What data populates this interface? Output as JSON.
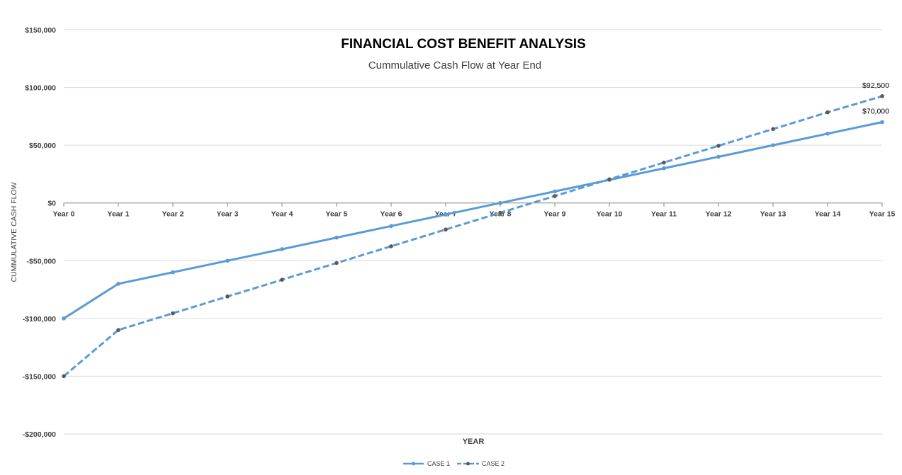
{
  "chart_data": {
    "type": "line",
    "title": "FINANCIAL COST BENEFIT ANALYSIS",
    "subtitle": "Cummulative  Cash Flow at Year End",
    "xlabel": "YEAR",
    "ylabel": "CUMMULATIVE CASH FLOW",
    "categories": [
      "Year 0",
      "Year 1",
      "Year 2",
      "Year 3",
      "Year 4",
      "Year 5",
      "Year 6",
      "Year 7",
      "Year 8",
      "Year 9",
      "Year 10",
      "Year 11",
      "Year 12",
      "Year 13",
      "Year 14",
      "Year 15"
    ],
    "ylim": [
      -200000,
      150000
    ],
    "yticks": [
      150000,
      100000,
      50000,
      0,
      -50000,
      -100000,
      -150000,
      -200000
    ],
    "ytick_labels": [
      "$150,000",
      "$100,000",
      "$50,000",
      "$0",
      "-$50,000",
      "-$100,000",
      "-$150,000",
      "-$200,000"
    ],
    "grid": true,
    "legend": "bottom",
    "series": [
      {
        "name": "CASE 1",
        "style": "solid",
        "color": "#5b9bd5",
        "marker_color": "#5b9bd5",
        "values": [
          -100000,
          -70000,
          -60000,
          -50000,
          -40000,
          -30000,
          -20000,
          -10000,
          0,
          10000,
          20000,
          30000,
          40000,
          50000,
          60000,
          70000
        ],
        "end_label": "$70,000"
      },
      {
        "name": "CASE 2",
        "style": "dashed",
        "color": "#5b9bd5",
        "marker_color": "#595959",
        "values": [
          -150000,
          -110000,
          -95500,
          -81000,
          -66500,
          -52000,
          -37500,
          -23000,
          -8500,
          6000,
          20500,
          35000,
          49500,
          64000,
          78500,
          92500
        ],
        "end_label": "$92,500"
      }
    ]
  }
}
